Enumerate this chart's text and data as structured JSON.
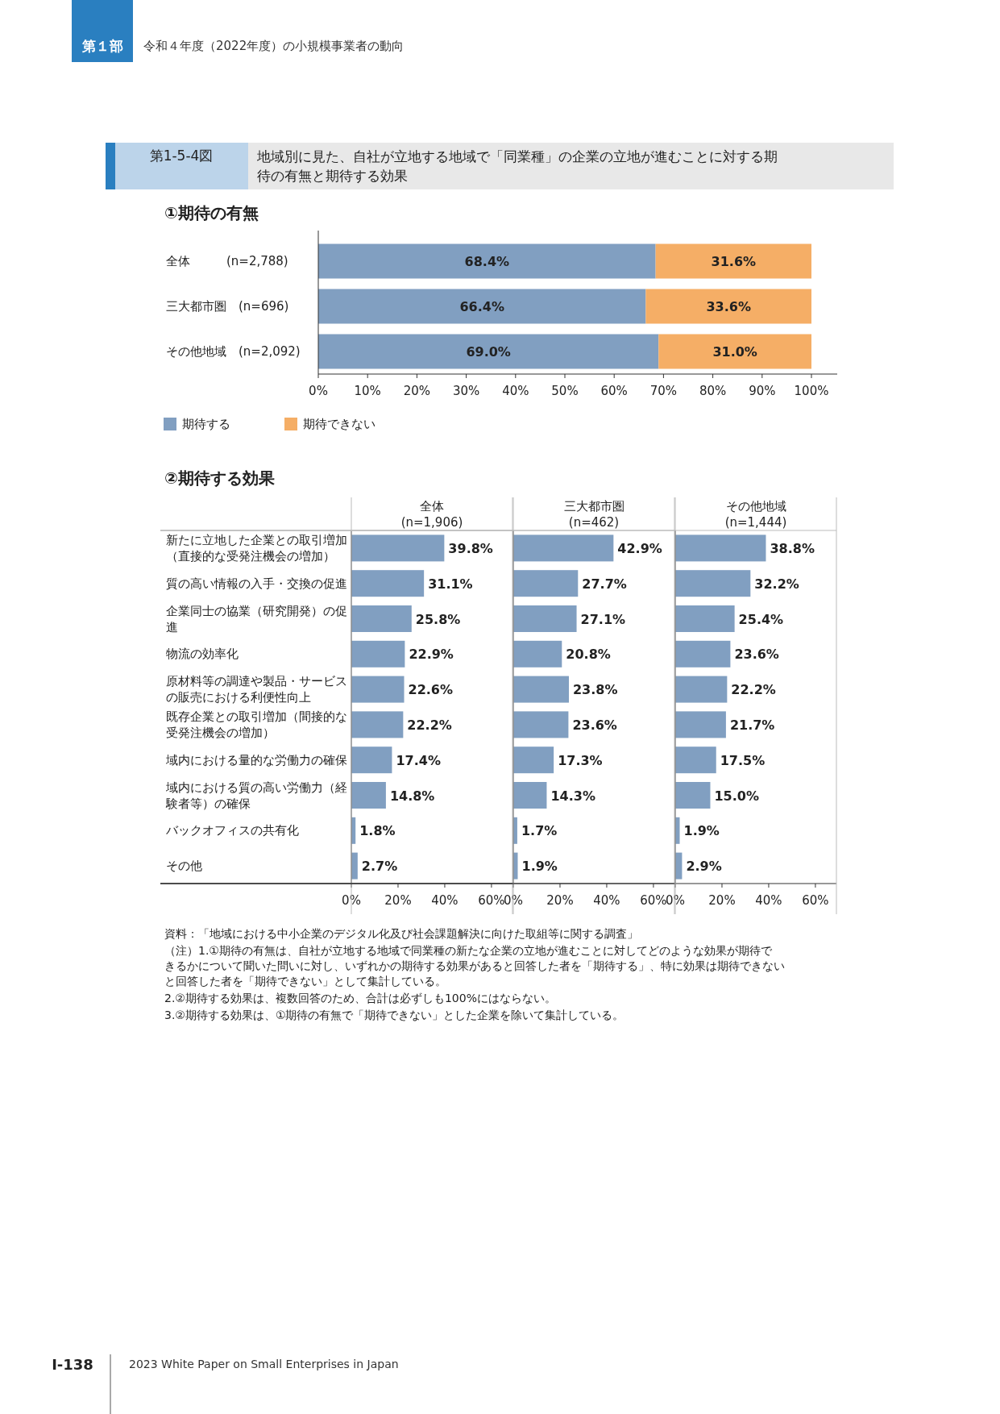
{
  "chart_data": [
    {
      "type": "bar",
      "orientation": "horizontal",
      "stacked": true,
      "title": "地域別に見た、自社が立地する地域で「同業種」の企業の立地が進むことに対する期待の有無と期待する効果",
      "subtitle": "①期待の有無",
      "categories": [
        "全体　　　(n=2,788)",
        "三大都市圏　(n=696)",
        "その他地域　(n=2,092)"
      ],
      "series": [
        {
          "name": "期待する",
          "color": "#819fc1",
          "values": [
            68.4,
            66.4,
            69.0
          ],
          "value_labels": [
            "68.4%",
            "66.4%",
            "69.0%"
          ]
        },
        {
          "name": "期待できない",
          "color": "#f5ae66",
          "values": [
            31.6,
            33.6,
            31.0
          ],
          "value_labels": [
            "31.6%",
            "33.6%",
            "31.0%"
          ]
        }
      ],
      "xlim": [
        0,
        100
      ],
      "xticks": [
        {
          "value": 0,
          "label": "0%"
        },
        {
          "value": 10,
          "label": "10%"
        },
        {
          "value": 20,
          "label": "20%"
        },
        {
          "value": 30,
          "label": "30%"
        },
        {
          "value": 40,
          "label": "40%"
        },
        {
          "value": 50,
          "label": "50%"
        },
        {
          "value": 60,
          "label": "60%"
        },
        {
          "value": 70,
          "label": "70%"
        },
        {
          "value": 80,
          "label": "80%"
        },
        {
          "value": 90,
          "label": "90%"
        },
        {
          "value": 100,
          "label": "100%"
        }
      ],
      "legend": "bottom left",
      "grid": false,
      "annotations": [
        "第１部",
        "令和４年度（2022年度）の小規模事業者の動向",
        "第1-5-4図",
        "Ⅰ-138",
        "2023 White Paper on Small Enterprises in Japan"
      ]
    },
    {
      "type": "bar",
      "orientation": "horizontal",
      "subtitle": "②期待する効果",
      "title": "全体\n(n=1,906)",
      "categories": [
        "新たに立地した企業との取引増加（直接的な受発注機会の増加）",
        "質の高い情報の入手・交換の促進",
        "企業同士の協業（研究開発）の促進",
        "物流の効率化",
        "原材料等の調達や製品・サービスの販売における利便性向上",
        "既存企業との取引増加（間接的な受発注機会の増加）",
        "域内における量的な労働力の確保",
        "域内における質の高い労働力（経験者等）の確保",
        "バックオフィスの共有化",
        "その他"
      ],
      "series": [
        {
          "color": "#819fc1",
          "values": [
            39.8,
            31.1,
            25.8,
            22.9,
            22.6,
            22.2,
            17.4,
            14.8,
            1.8,
            2.7
          ],
          "value_labels": [
            "39.8%",
            "31.1%",
            "25.8%",
            "22.9%",
            "22.6%",
            "22.2%",
            "17.4%",
            "14.8%",
            "1.8%",
            "2.7%"
          ]
        }
      ],
      "xlim": [
        0,
        69
      ],
      "xticks": [
        {
          "value": 0,
          "label": "0%"
        },
        {
          "value": 20,
          "label": "20%"
        },
        {
          "value": 40,
          "label": "40%"
        },
        {
          "value": 60,
          "label": "60%"
        }
      ],
      "grid": false
    },
    {
      "type": "bar",
      "orientation": "horizontal",
      "title": "三大都市圏\n(n=462)",
      "categories": [
        "新たに立地した企業との取引増加（直接的な受発注機会の増加）",
        "質の高い情報の入手・交換の促進",
        "企業同士の協業（研究開発）の促進",
        "物流の効率化",
        "原材料等の調達や製品・サービスの販売における利便性向上",
        "既存企業との取引増加（間接的な受発注機会の増加）",
        "域内における量的な労働力の確保",
        "域内における質の高い労働力（経験者等）の確保",
        "バックオフィスの共有化",
        "その他"
      ],
      "series": [
        {
          "color": "#819fc1",
          "values": [
            42.9,
            27.7,
            27.1,
            20.8,
            23.8,
            23.6,
            17.3,
            14.3,
            1.7,
            1.9
          ],
          "value_labels": [
            "42.9%",
            "27.7%",
            "27.1%",
            "20.8%",
            "23.8%",
            "23.6%",
            "17.3%",
            "14.3%",
            "1.7%",
            "1.9%"
          ]
        }
      ],
      "xlim": [
        0,
        69
      ],
      "xticks": [
        {
          "value": 0,
          "label": "0%"
        },
        {
          "value": 20,
          "label": "20%"
        },
        {
          "value": 40,
          "label": "40%"
        },
        {
          "value": 60,
          "label": "60%"
        }
      ],
      "grid": false,
      "tick_labels": "x"
    },
    {
      "type": "bar",
      "orientation": "horizontal",
      "title": "その他地域\n(n=1,444)",
      "categories": [
        "新たに立地した企業との取引増加（直接的な受発注機会の増加）",
        "質の高い情報の入手・交換の促進",
        "企業同士の協業（研究開発）の促進",
        "物流の効率化",
        "原材料等の調達や製品・サービスの販売における利便性向上",
        "既存企業との取引増加（間接的な受発注機会の増加）",
        "域内における量的な労働力の確保",
        "域内における質の高い労働力（経験者等）の確保",
        "バックオフィスの共有化",
        "その他"
      ],
      "series": [
        {
          "color": "#819fc1",
          "values": [
            38.8,
            32.2,
            25.4,
            23.6,
            22.2,
            21.7,
            17.5,
            15.0,
            1.9,
            2.9
          ],
          "value_labels": [
            "38.8%",
            "32.2%",
            "25.4%",
            "23.6%",
            "22.2%",
            "21.7%",
            "17.5%",
            "15.0%",
            "1.9%",
            "2.9%"
          ]
        }
      ],
      "xlim": [
        0,
        69
      ],
      "xticks": [
        {
          "value": 0,
          "label": "0%"
        },
        {
          "value": 20,
          "label": "20%"
        },
        {
          "value": 40,
          "label": "40%"
        },
        {
          "value": 60,
          "label": "60%"
        }
      ],
      "grid": false,
      "tick_labels": "x",
      "annotations": [
        "資料：「地域における中小企業のデジタル化及び社会課題解決に向けた取組等に関する調査」",
        "（注）1.①期待の有無は、自社が立地する地域で同業種の新たな企業の立地が進むことに対してどのような効果が期待できるかについて聞いた問いに対し、いずれかの期待する効果があると回答した者を「期待する」、特に効果は期待できないと回答した者を「期待できない」として集計している。",
        "2.②期待する効果は、複数回答のため、合計は必ずしも100%にはならない。",
        "3.②期待する効果は、①期待の有無で「期待できない」とした企業を除いて集計している。"
      ]
    }
  ]
}
